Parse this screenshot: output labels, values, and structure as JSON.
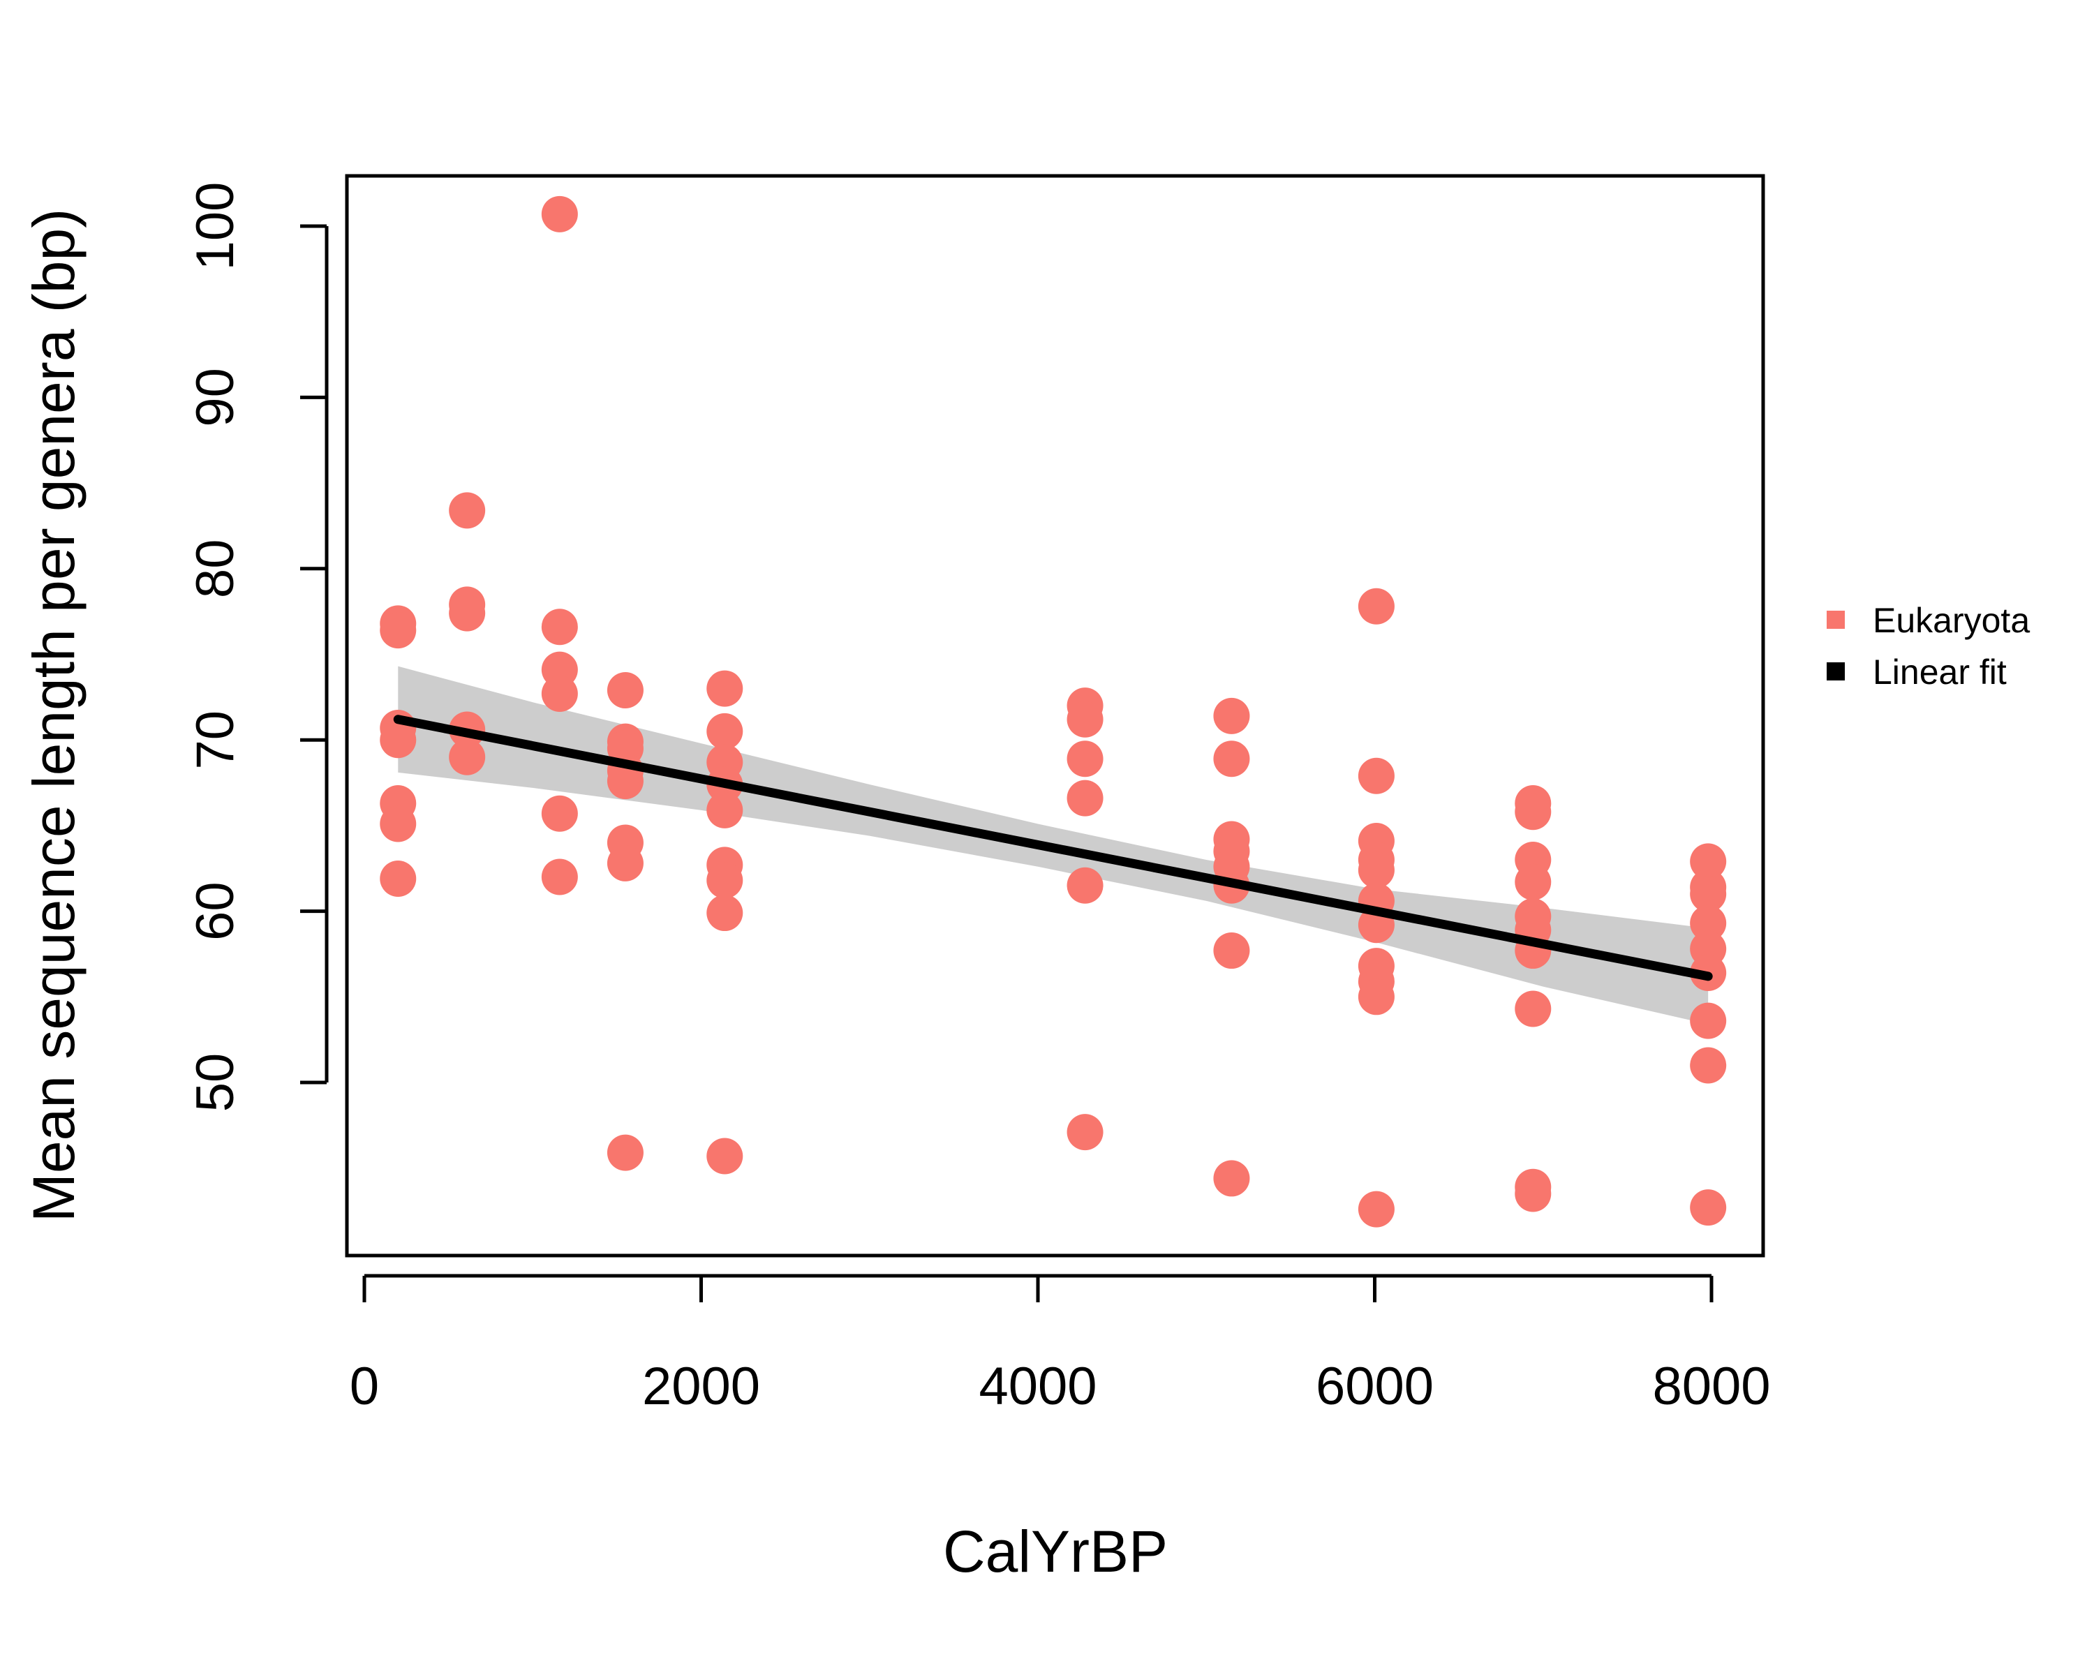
{
  "chart_data": {
    "type": "scatter",
    "xlabel": "CalYrBP",
    "ylabel": "Mean sequence length per genera (bp)",
    "xlim": [
      -100,
      8150
    ],
    "ylim": [
      40,
      102
    ],
    "x_ticks": [
      0,
      2000,
      4000,
      6000,
      8000
    ],
    "y_ticks": [
      50,
      60,
      70,
      80,
      90,
      100
    ],
    "grid": false,
    "legend_position": "right",
    "series": [
      {
        "name": "Eukaryota",
        "color": "#F8766D",
        "marker": "circle",
        "points": [
          {
            "x": 200,
            "y": 76.8
          },
          {
            "x": 200,
            "y": 76.4
          },
          {
            "x": 200,
            "y": 70.7
          },
          {
            "x": 200,
            "y": 70.0
          },
          {
            "x": 200,
            "y": 66.3
          },
          {
            "x": 200,
            "y": 65.1
          },
          {
            "x": 200,
            "y": 61.9
          },
          {
            "x": 610,
            "y": 83.4
          },
          {
            "x": 610,
            "y": 77.9
          },
          {
            "x": 610,
            "y": 77.4
          },
          {
            "x": 610,
            "y": 70.6
          },
          {
            "x": 610,
            "y": 69.0
          },
          {
            "x": 1160,
            "y": 100.7
          },
          {
            "x": 1160,
            "y": 76.6
          },
          {
            "x": 1160,
            "y": 74.1
          },
          {
            "x": 1160,
            "y": 72.7
          },
          {
            "x": 1160,
            "y": 65.7
          },
          {
            "x": 1160,
            "y": 62.0
          },
          {
            "x": 1550,
            "y": 72.9
          },
          {
            "x": 1550,
            "y": 69.9
          },
          {
            "x": 1550,
            "y": 69.5
          },
          {
            "x": 1550,
            "y": 68.2
          },
          {
            "x": 1550,
            "y": 67.6
          },
          {
            "x": 1550,
            "y": 64.0
          },
          {
            "x": 1550,
            "y": 62.8
          },
          {
            "x": 1550,
            "y": 45.9
          },
          {
            "x": 2140,
            "y": 73.0
          },
          {
            "x": 2140,
            "y": 70.5
          },
          {
            "x": 2140,
            "y": 68.7
          },
          {
            "x": 2140,
            "y": 67.4
          },
          {
            "x": 2140,
            "y": 65.9
          },
          {
            "x": 2140,
            "y": 62.7
          },
          {
            "x": 2140,
            "y": 61.8
          },
          {
            "x": 2140,
            "y": 59.9
          },
          {
            "x": 2140,
            "y": 45.7
          },
          {
            "x": 4280,
            "y": 72.0
          },
          {
            "x": 4280,
            "y": 71.2
          },
          {
            "x": 4280,
            "y": 68.9
          },
          {
            "x": 4280,
            "y": 66.6
          },
          {
            "x": 4280,
            "y": 61.5
          },
          {
            "x": 4280,
            "y": 47.1
          },
          {
            "x": 5150,
            "y": 71.4
          },
          {
            "x": 5150,
            "y": 68.9
          },
          {
            "x": 5150,
            "y": 64.2
          },
          {
            "x": 5150,
            "y": 63.5
          },
          {
            "x": 5150,
            "y": 62.6
          },
          {
            "x": 5150,
            "y": 61.5
          },
          {
            "x": 5150,
            "y": 57.7
          },
          {
            "x": 5150,
            "y": 44.4
          },
          {
            "x": 6010,
            "y": 77.8
          },
          {
            "x": 6010,
            "y": 67.9
          },
          {
            "x": 6010,
            "y": 64.1
          },
          {
            "x": 6010,
            "y": 63.0
          },
          {
            "x": 6010,
            "y": 62.4
          },
          {
            "x": 6010,
            "y": 60.6
          },
          {
            "x": 6010,
            "y": 59.2
          },
          {
            "x": 6010,
            "y": 56.8
          },
          {
            "x": 6010,
            "y": 55.9
          },
          {
            "x": 6010,
            "y": 55.0
          },
          {
            "x": 6010,
            "y": 42.6
          },
          {
            "x": 6940,
            "y": 66.3
          },
          {
            "x": 6940,
            "y": 65.8
          },
          {
            "x": 6940,
            "y": 63.0
          },
          {
            "x": 6940,
            "y": 61.7
          },
          {
            "x": 6940,
            "y": 59.7
          },
          {
            "x": 6940,
            "y": 58.9
          },
          {
            "x": 6940,
            "y": 57.7
          },
          {
            "x": 6940,
            "y": 54.3
          },
          {
            "x": 6940,
            "y": 43.9
          },
          {
            "x": 6940,
            "y": 43.5
          },
          {
            "x": 7980,
            "y": 62.9
          },
          {
            "x": 7980,
            "y": 61.4
          },
          {
            "x": 7980,
            "y": 61.0
          },
          {
            "x": 7980,
            "y": 59.3
          },
          {
            "x": 7980,
            "y": 57.8
          },
          {
            "x": 7980,
            "y": 56.4
          },
          {
            "x": 7980,
            "y": 53.6
          },
          {
            "x": 7980,
            "y": 51.0
          },
          {
            "x": 7980,
            "y": 42.7
          }
        ]
      },
      {
        "name": "Linear fit",
        "color": "#000000",
        "type": "line",
        "x": [
          200,
          7980
        ],
        "y": [
          71.2,
          56.2
        ],
        "confidence_band": {
          "color": "#c8c8c8",
          "x": [
            200,
            1000,
            2000,
            3000,
            4000,
            5000,
            6000,
            7000,
            7980
          ],
          "upper": [
            74.3,
            72.2,
            69.8,
            67.4,
            65.1,
            63.0,
            61.3,
            60.2,
            59.0
          ],
          "lower": [
            68.1,
            67.2,
            65.9,
            64.4,
            62.6,
            60.6,
            58.2,
            55.6,
            53.4
          ]
        }
      }
    ]
  }
}
